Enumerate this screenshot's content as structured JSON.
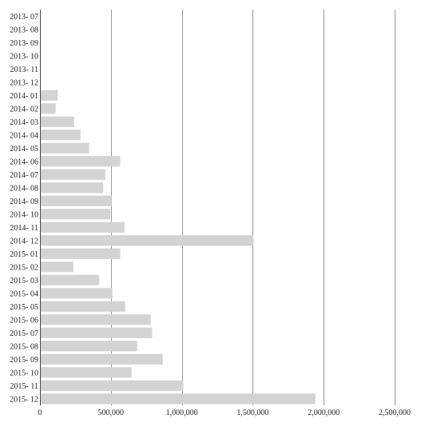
{
  "chart_data": {
    "type": "bar",
    "orientation": "horizontal",
    "title": "",
    "xlabel": "",
    "ylabel": "",
    "xlim": [
      0,
      2500000
    ],
    "grid": true,
    "legend": "none",
    "bar_color": "#d3d3d3",
    "x_ticks": [
      0,
      500000,
      1000000,
      1500000,
      2000000,
      2500000
    ],
    "x_tick_labels": [
      "0",
      "500,000",
      "1,000,000",
      "1,500,000",
      "2,000,000",
      "2,500,000"
    ],
    "categories": [
      "2013- 07",
      "2013- 08",
      "2013- 09",
      "2013- 10",
      "2013- 11",
      "2013- 12",
      "2014- 01",
      "2014- 02",
      "2014- 03",
      "2014- 04",
      "2014- 05",
      "2014- 06",
      "2014- 07",
      "2014- 08",
      "2014- 09",
      "2014- 10",
      "2014- 11",
      "2014- 12",
      "2015- 01",
      "2015- 02",
      "2015- 03",
      "2015- 04",
      "2015- 05",
      "2015- 06",
      "2015- 07",
      "2015- 08",
      "2015- 09",
      "2015- 10",
      "2015- 11",
      "2015- 12"
    ],
    "values": [
      0,
      0,
      0,
      0,
      0,
      0,
      120000,
      105000,
      235000,
      280000,
      340000,
      560000,
      455000,
      440000,
      500000,
      490000,
      590000,
      1500000,
      560000,
      230000,
      410000,
      505000,
      595000,
      775000,
      785000,
      680000,
      860000,
      640000,
      1005000,
      1935000
    ]
  }
}
